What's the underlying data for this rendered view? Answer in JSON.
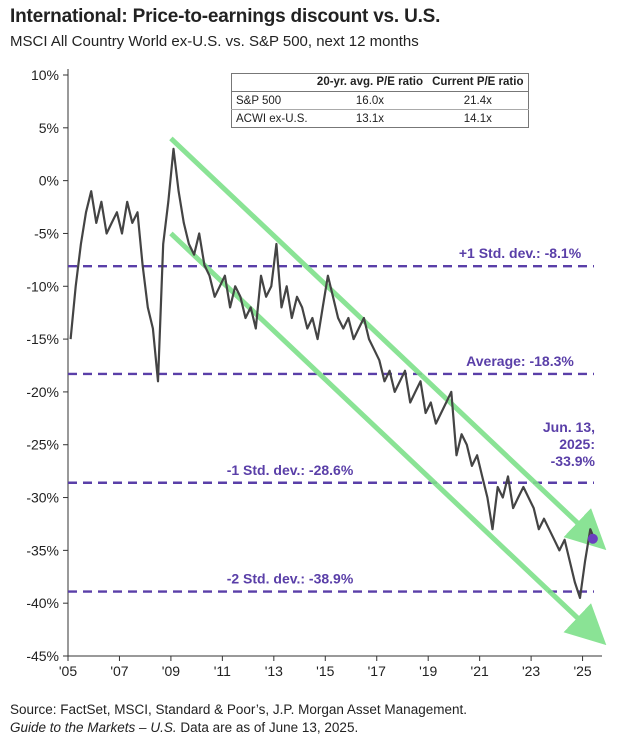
{
  "title": "International: Price-to-earnings discount vs. U.S.",
  "subtitle": "MSCI All Country World ex-U.S. vs. S&P 500, next 12 months",
  "source_line1": "Source: FactSet, MSCI, Standard & Poor’s, J.P. Morgan Asset Management.",
  "source_line2_italic": "Guide to the Markets – U.S.",
  "source_line2_rest": " Data are as of June 13, 2025.",
  "table": {
    "header_col1": "20-yr. avg. P/E ratio",
    "header_col2": "Current P/E ratio",
    "rows": [
      {
        "label": "S&P 500",
        "avg": "16.0x",
        "current": "21.4x"
      },
      {
        "label": "ACWI ex-U.S.",
        "avg": "13.1x",
        "current": "14.1x"
      }
    ]
  },
  "colors": {
    "line": "#444444",
    "bands": "#5a3fa8",
    "channel": "#7ee08a",
    "marker": "#6a3fbf"
  },
  "chart_data": {
    "type": "line",
    "xlabel": "",
    "ylabel": "",
    "xlim": [
      2005,
      2025.6
    ],
    "ylim": [
      -45,
      10
    ],
    "y_ticks": [
      10,
      5,
      0,
      -5,
      -10,
      -15,
      -20,
      -25,
      -30,
      -35,
      -40,
      -45
    ],
    "y_tick_labels": [
      "10%",
      "5%",
      "0%",
      "-5%",
      "-10%",
      "-15%",
      "-20%",
      "-25%",
      "-30%",
      "-35%",
      "-40%",
      "-45%"
    ],
    "x_ticks": [
      2005,
      2007,
      2009,
      2011,
      2013,
      2015,
      2017,
      2019,
      2021,
      2023,
      2025
    ],
    "x_tick_labels": [
      "'05",
      "'07",
      "'09",
      "'11",
      "'13",
      "'15",
      "'17",
      "'19",
      "'21",
      "'23",
      "'25"
    ],
    "reference_lines": [
      {
        "label": "+1 Std. dev.: -8.1%",
        "value": -8.1
      },
      {
        "label": "Average: -18.3%",
        "value": -18.3
      },
      {
        "label": "-1 Std. dev.: -28.6%",
        "value": -28.6
      },
      {
        "label": "-2 Std. dev.: -38.9%",
        "value": -38.9
      }
    ],
    "annotation": {
      "lines": [
        "Jun. 13,",
        "2025:",
        "-33.9%"
      ],
      "x": 2025.4,
      "y": -33.9
    },
    "channel": [
      {
        "x": [
          2009.0,
          2025.5
        ],
        "y": [
          4.0,
          -34.0
        ]
      },
      {
        "x": [
          2009.0,
          2025.5
        ],
        "y": [
          -5.0,
          -43.0
        ]
      }
    ],
    "series": [
      {
        "x": [
          2005.1,
          2005.3,
          2005.5,
          2005.7,
          2005.9,
          2006.1,
          2006.3,
          2006.5,
          2006.7,
          2006.9,
          2007.1,
          2007.3,
          2007.5,
          2007.7,
          2007.9,
          2008.1,
          2008.3,
          2008.5,
          2008.7,
          2008.9,
          2009.1,
          2009.3,
          2009.5,
          2009.7,
          2009.9,
          2010.1,
          2010.3,
          2010.5,
          2010.7,
          2010.9,
          2011.1,
          2011.3,
          2011.5,
          2011.7,
          2011.9,
          2012.1,
          2012.3,
          2012.5,
          2012.7,
          2012.9,
          2013.1,
          2013.3,
          2013.5,
          2013.7,
          2013.9,
          2014.1,
          2014.3,
          2014.5,
          2014.7,
          2014.9,
          2015.1,
          2015.3,
          2015.5,
          2015.7,
          2015.9,
          2016.1,
          2016.3,
          2016.5,
          2016.7,
          2016.9,
          2017.1,
          2017.3,
          2017.5,
          2017.7,
          2017.9,
          2018.1,
          2018.3,
          2018.5,
          2018.7,
          2018.9,
          2019.1,
          2019.3,
          2019.5,
          2019.7,
          2019.9,
          2020.1,
          2020.3,
          2020.5,
          2020.7,
          2020.9,
          2021.1,
          2021.3,
          2021.5,
          2021.7,
          2021.9,
          2022.1,
          2022.3,
          2022.5,
          2022.7,
          2022.9,
          2023.1,
          2023.3,
          2023.5,
          2023.7,
          2023.9,
          2024.1,
          2024.3,
          2024.5,
          2024.7,
          2024.9,
          2025.1,
          2025.3,
          2025.45
        ],
        "y": [
          -15.0,
          -10.0,
          -6.0,
          -3.0,
          -1.0,
          -4.0,
          -2.0,
          -5.0,
          -4.0,
          -3.0,
          -5.0,
          -2.0,
          -4.0,
          -3.0,
          -8.0,
          -12.0,
          -14.0,
          -19.0,
          -6.0,
          -2.0,
          3.0,
          -1.0,
          -4.0,
          -6.0,
          -7.0,
          -5.0,
          -8.0,
          -9.0,
          -11.0,
          -10.0,
          -9.0,
          -12.0,
          -10.0,
          -11.0,
          -13.0,
          -12.0,
          -14.0,
          -9.0,
          -11.0,
          -10.0,
          -6.0,
          -12.0,
          -10.0,
          -13.0,
          -11.0,
          -12.0,
          -14.0,
          -13.0,
          -15.0,
          -12.0,
          -9.0,
          -11.0,
          -13.0,
          -14.0,
          -13.0,
          -15.0,
          -14.0,
          -13.0,
          -15.0,
          -16.0,
          -17.0,
          -19.0,
          -18.0,
          -20.0,
          -19.0,
          -18.0,
          -21.0,
          -20.0,
          -19.0,
          -22.0,
          -21.0,
          -23.0,
          -22.0,
          -21.0,
          -20.0,
          -26.0,
          -24.0,
          -25.0,
          -27.0,
          -26.0,
          -28.0,
          -30.0,
          -33.0,
          -29.0,
          -30.0,
          -28.0,
          -31.0,
          -30.0,
          -29.0,
          -30.0,
          -31.0,
          -33.0,
          -32.0,
          -33.0,
          -34.0,
          -35.0,
          -34.0,
          -36.0,
          -38.0,
          -39.5,
          -36.0,
          -33.0,
          -33.9
        ]
      }
    ]
  }
}
